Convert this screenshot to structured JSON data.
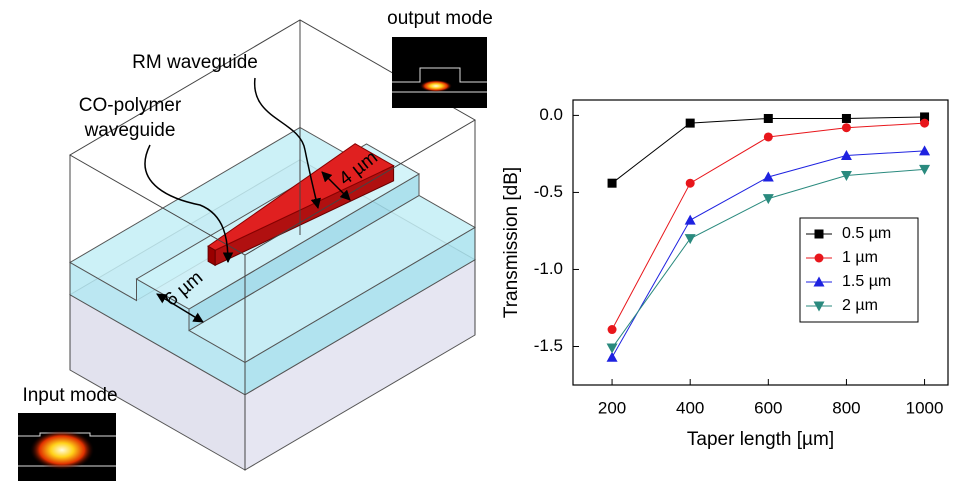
{
  "chart_data": {
    "type": "line",
    "x": [
      200,
      400,
      600,
      800,
      1000
    ],
    "xlim": [
      100,
      1060
    ],
    "xticks": [
      200,
      400,
      600,
      800,
      1000
    ],
    "ylim": [
      -1.75,
      0.1
    ],
    "yticks": [
      {
        "value": 0,
        "label": "0.0"
      },
      -0.5,
      {
        "value": -1,
        "label": "-1.0"
      },
      -1.5
    ],
    "xlabel": "Taper length [µm]",
    "ylabel": "Transmission [dB]",
    "legend": "right",
    "series": [
      {
        "name": "0.5 µm",
        "color": "#000000",
        "marker": "square",
        "values": [
          -0.44,
          -0.05,
          -0.02,
          -0.02,
          -0.01
        ]
      },
      {
        "name": "1 µm",
        "color": "#e8161b",
        "marker": "circle",
        "values": [
          -1.39,
          -0.44,
          -0.14,
          -0.08,
          -0.05
        ]
      },
      {
        "name": "1.5 µm",
        "color": "#1e22e0",
        "marker": "triangle-up",
        "values": [
          -1.57,
          -0.68,
          -0.4,
          -0.26,
          -0.23
        ]
      },
      {
        "name": "2 µm",
        "color": "#2a8a7e",
        "marker": "triangle-down",
        "values": [
          -1.51,
          -0.8,
          -0.54,
          -0.39,
          -0.35
        ]
      }
    ]
  },
  "diagram": {
    "output_mode": "output mode",
    "input_mode": "Input mode",
    "rm_waveguide": "RM waveguide",
    "co_polymer": [
      "CO-polymer",
      "waveguide"
    ],
    "width_4": "4 µm",
    "width_6": "6 µm"
  }
}
